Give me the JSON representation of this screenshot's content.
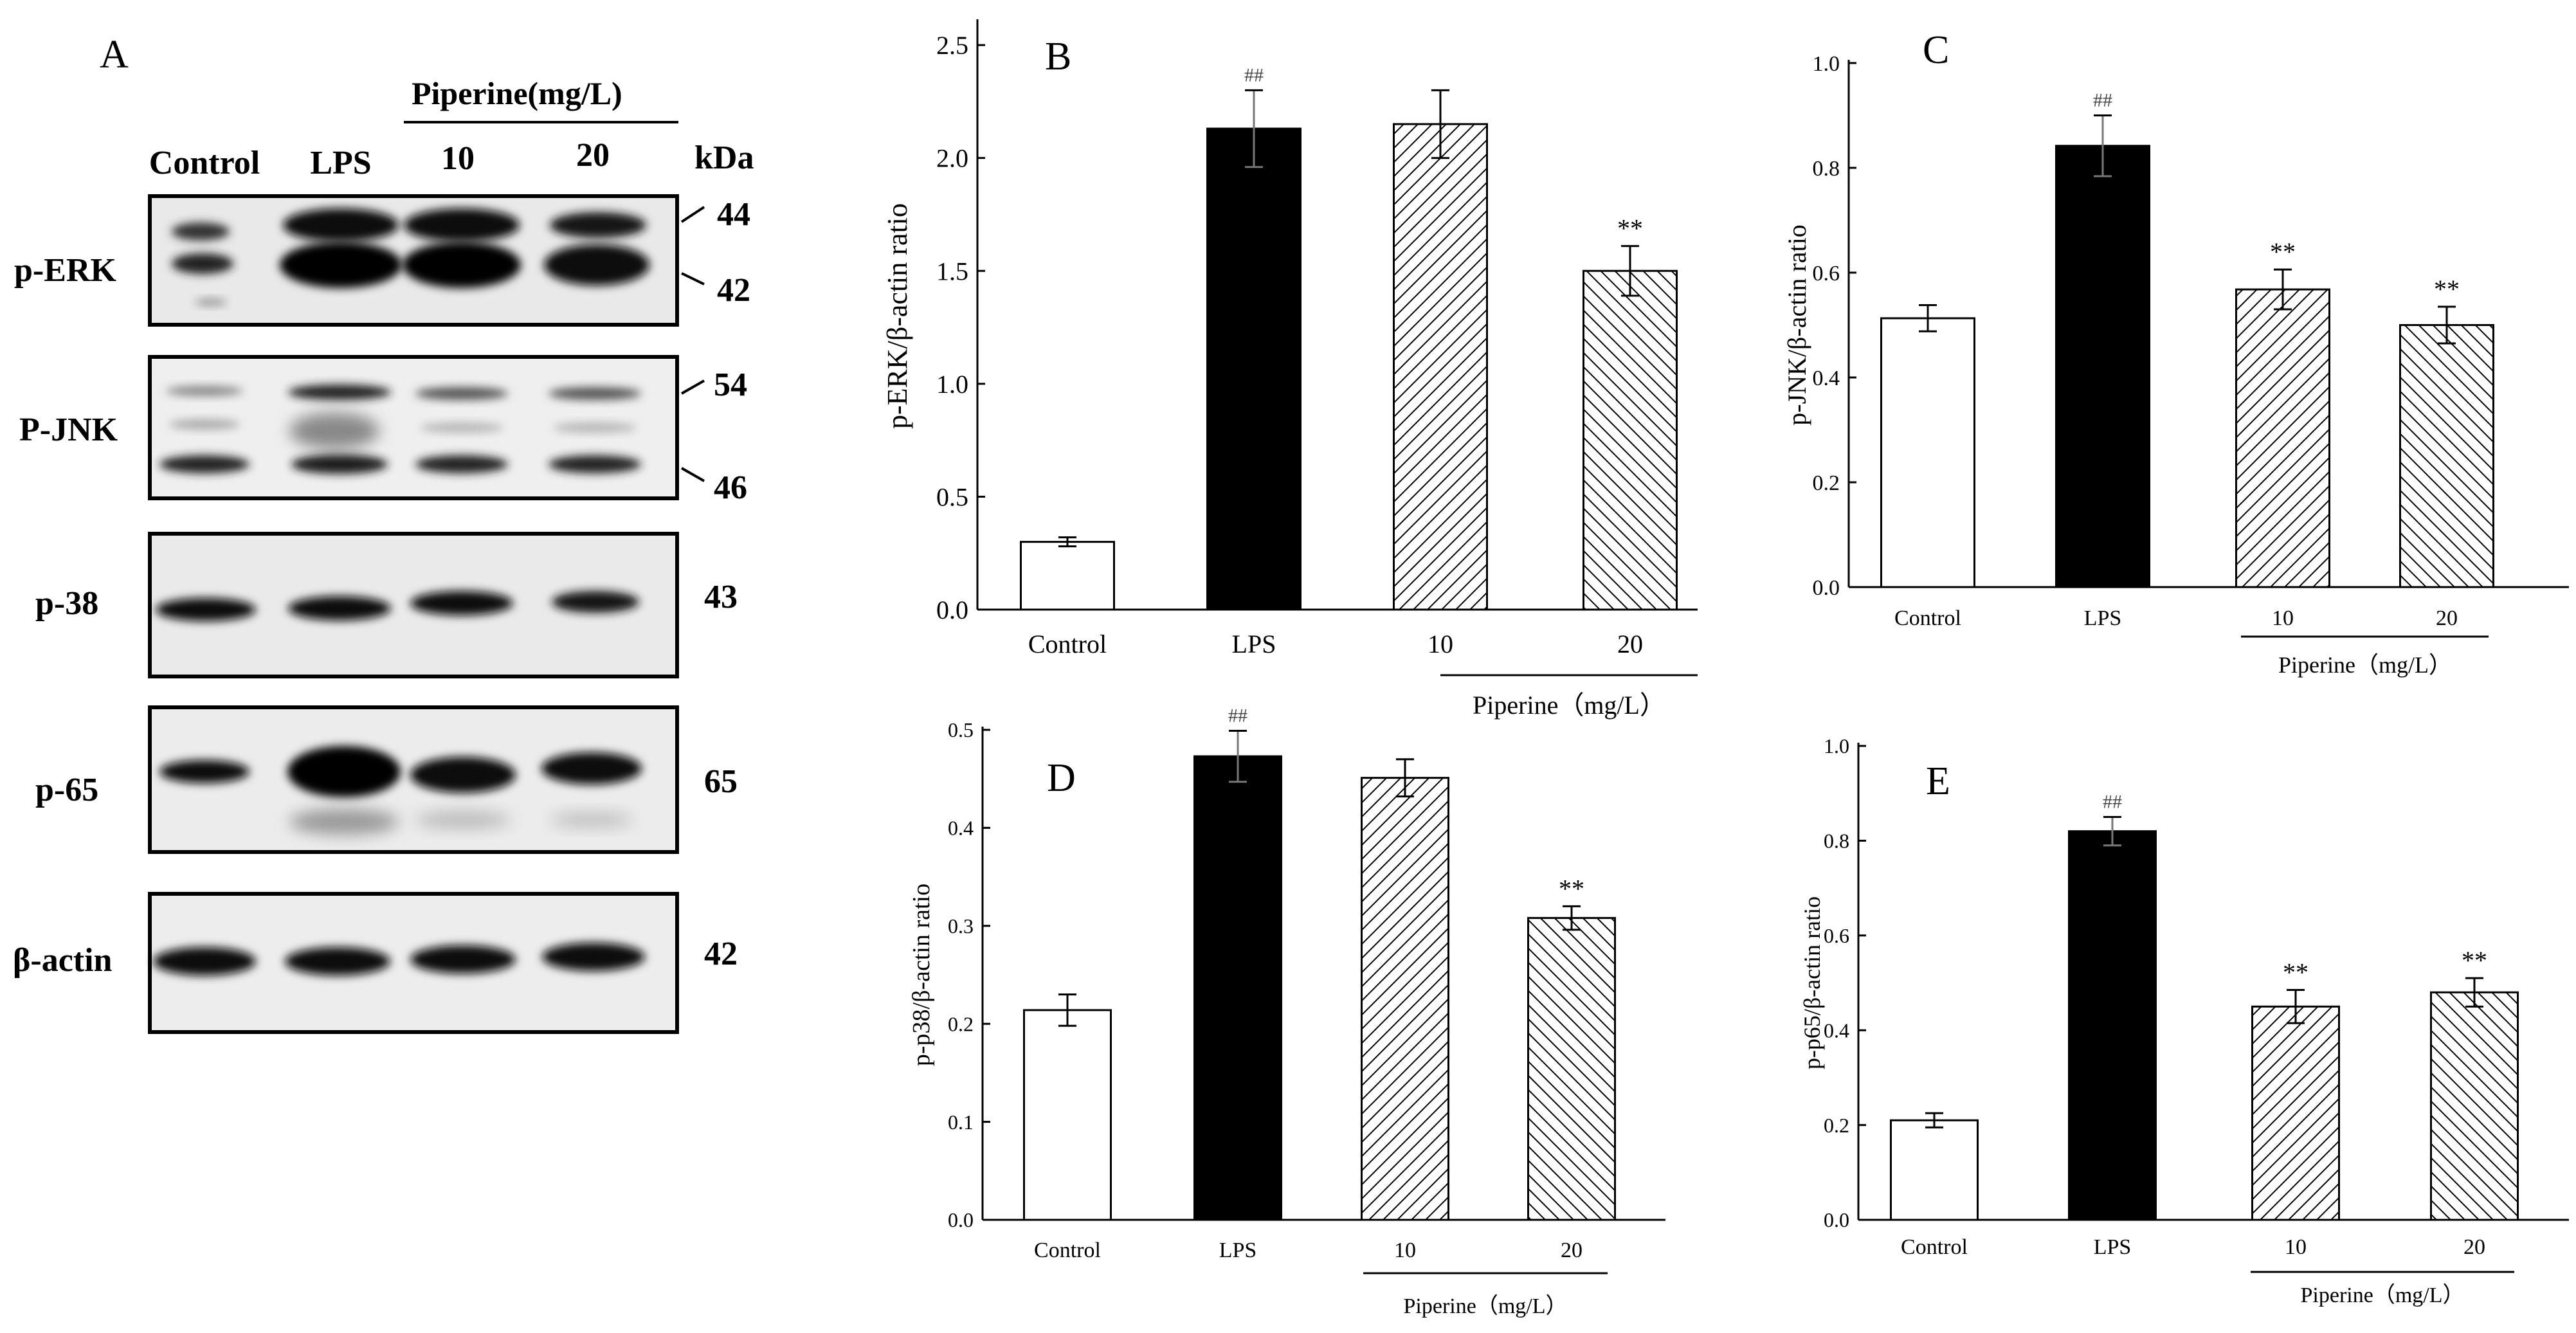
{
  "blot": {
    "panel_label": "A",
    "treatment_header": "Piperine(mg/L)",
    "unit_header": "kDa",
    "lanes": [
      "Control",
      "LPS",
      "10",
      "20"
    ],
    "rows": [
      {
        "label": "p-ERK",
        "markers": [
          "44",
          "42"
        ]
      },
      {
        "label": "P-JNK",
        "markers": [
          "54",
          "46"
        ]
      },
      {
        "label": "p-38",
        "markers": [
          "43"
        ]
      },
      {
        "label": "p-65",
        "markers": [
          "65"
        ]
      },
      {
        "label": "β-actin",
        "markers": [
          "42"
        ]
      }
    ]
  },
  "chart_data": [
    {
      "panel": "B",
      "type": "bar",
      "title": "",
      "xlabel": "",
      "ylabel": "p-ERK/β-actin ratio",
      "group_label": "Piperine（mg/L）",
      "categories": [
        "Control",
        "LPS",
        "10",
        "20"
      ],
      "values": [
        0.3,
        2.13,
        2.15,
        1.5
      ],
      "errors": [
        0.02,
        0.17,
        0.15,
        0.11
      ],
      "annotations": [
        "",
        "##",
        "",
        "**"
      ],
      "fills": [
        "white",
        "black",
        "hatch-right",
        "hatch-left"
      ],
      "ylim": [
        0,
        2.6
      ],
      "yticks": [
        "0.0",
        "0.5",
        "1.0",
        "1.5",
        "2.0",
        "2.5"
      ]
    },
    {
      "panel": "C",
      "type": "bar",
      "title": "",
      "xlabel": "",
      "ylabel": "p-JNK/β-actin ratio",
      "group_label": "Piperine（mg/L）",
      "categories": [
        "Control",
        "LPS",
        "10",
        "20"
      ],
      "values": [
        0.513,
        0.842,
        0.568,
        0.5
      ],
      "errors": [
        0.025,
        0.058,
        0.038,
        0.035
      ],
      "annotations": [
        "",
        "##",
        "**",
        "**"
      ],
      "fills": [
        "white",
        "black",
        "hatch-right",
        "hatch-left"
      ],
      "ylim": [
        0,
        1.0
      ],
      "yticks": [
        "0.0",
        "0.2",
        "0.4",
        "0.6",
        "0.8",
        "1.0"
      ]
    },
    {
      "panel": "D",
      "type": "bar",
      "title": "",
      "xlabel": "",
      "ylabel": "p-p38/β-actin ratio",
      "group_label": "Piperine（mg/L）",
      "categories": [
        "Control",
        "LPS",
        "10",
        "20"
      ],
      "values": [
        0.214,
        0.473,
        0.451,
        0.308
      ],
      "errors": [
        0.016,
        0.026,
        0.019,
        0.012
      ],
      "annotations": [
        "",
        "##",
        "",
        "**"
      ],
      "fills": [
        "white",
        "black",
        "hatch-right",
        "hatch-left"
      ],
      "ylim": [
        0,
        0.5
      ],
      "yticks": [
        "0.0",
        "0.1",
        "0.2",
        "0.3",
        "0.4",
        "0.5"
      ]
    },
    {
      "panel": "E",
      "type": "bar",
      "title": "",
      "xlabel": "",
      "ylabel": "p-p65/β-actin ratio",
      "group_label": "Piperine（mg/L）",
      "categories": [
        "Control",
        "LPS",
        "10",
        "20"
      ],
      "values": [
        0.21,
        0.82,
        0.45,
        0.48
      ],
      "errors": [
        0.015,
        0.03,
        0.035,
        0.03
      ],
      "annotations": [
        "",
        "##",
        "**",
        "**"
      ],
      "fills": [
        "white",
        "black",
        "hatch-right",
        "hatch-left"
      ],
      "ylim": [
        0,
        1.0
      ],
      "yticks": [
        "0.0",
        "0.2",
        "0.4",
        "0.6",
        "0.8",
        "1.0"
      ]
    }
  ]
}
